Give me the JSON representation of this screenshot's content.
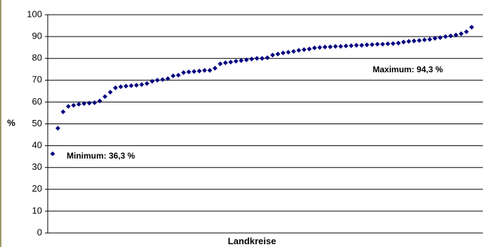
{
  "chart_data": {
    "type": "scatter",
    "title": "",
    "xlabel": "Landkreise",
    "ylabel": "%",
    "ylim": [
      0,
      100
    ],
    "yticks": [
      0,
      10,
      20,
      30,
      40,
      50,
      60,
      70,
      80,
      90,
      100
    ],
    "grid": "horizontal",
    "legend": "none",
    "marker": "diamond",
    "colors": {
      "point": "#000080",
      "grid": "#000000",
      "frame": "#999966"
    },
    "series": [
      {
        "values": [
          36.3,
          48.0,
          55.5,
          58.0,
          58.5,
          59.0,
          59.3,
          59.5,
          59.7,
          60.5,
          62.5,
          64.5,
          66.5,
          67.0,
          67.3,
          67.5,
          67.7,
          68.0,
          68.5,
          69.5,
          70.0,
          70.3,
          70.7,
          72.0,
          72.3,
          73.5,
          73.8,
          74.0,
          74.2,
          74.5,
          74.5,
          75.5,
          77.5,
          78.0,
          78.3,
          78.7,
          79.0,
          79.3,
          79.7,
          80.0,
          80.0,
          80.3,
          81.5,
          82.0,
          82.5,
          82.8,
          83.2,
          83.7,
          84.0,
          84.3,
          84.8,
          85.0,
          85.2,
          85.3,
          85.5,
          85.5,
          85.7,
          85.8,
          86.0,
          86.0,
          86.2,
          86.3,
          86.5,
          86.5,
          86.7,
          86.8,
          87.0,
          87.5,
          87.8,
          88.0,
          88.2,
          88.5,
          88.7,
          89.2,
          89.5,
          90.0,
          90.3,
          90.7,
          91.3,
          92.2,
          94.3
        ]
      }
    ],
    "annotations": {
      "min_label": "Minimum: 36,3 %",
      "max_label": "Maximum: 94,3 %"
    }
  }
}
